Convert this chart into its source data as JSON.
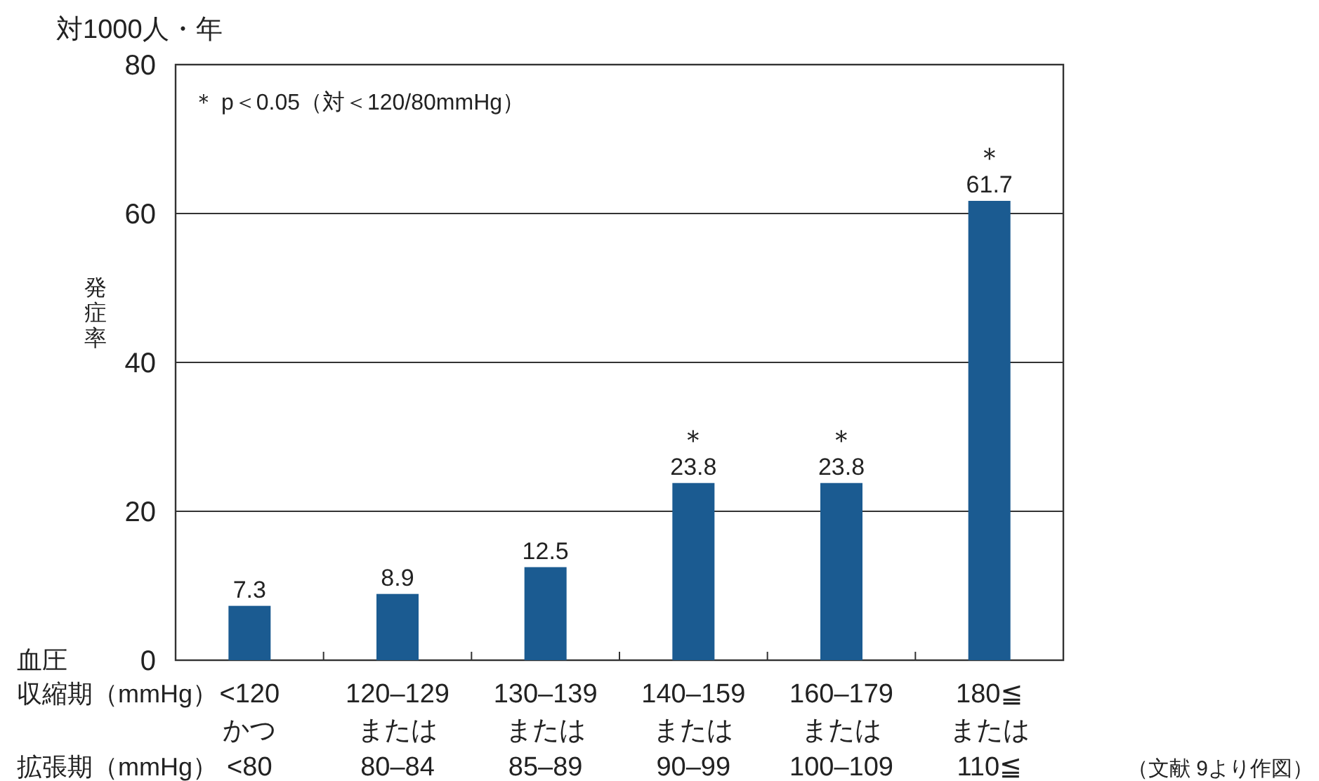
{
  "chart_data": {
    "type": "bar",
    "title": "対1000人・年",
    "ylabel": "発症率",
    "categories": [
      "<120\nかつ\n<80",
      "120–129\nまたは\n80–84",
      "130–139\nまたは\n85–89",
      "140–159\nまたは\n90–99",
      "160–179\nまたは\n100–109",
      "180≦\nまたは\n110≦"
    ],
    "values": [
      7.3,
      8.9,
      12.5,
      23.8,
      23.8,
      61.7
    ],
    "color": "#1b5b91",
    "data_labels": true,
    "ylim": [
      0,
      80
    ],
    "yticks": [
      0,
      20,
      40,
      60,
      80
    ],
    "grid": "y",
    "annotations": [
      "＊ p＜0.05（対＜120/80mmHg）",
      "血圧",
      "収縮期（mmHg）",
      "拡張期（mmHg）",
      "（文献 9より作図）",
      {
        "text": "＊",
        "x": "140–159\nまたは\n90–99",
        "y": 23.8
      },
      {
        "text": "＊",
        "x": "160–179\nまたは\n100–109",
        "y": 23.8
      },
      {
        "text": "＊",
        "x": "180≦\nまたは\n110≦",
        "y": 61.7
      }
    ]
  }
}
